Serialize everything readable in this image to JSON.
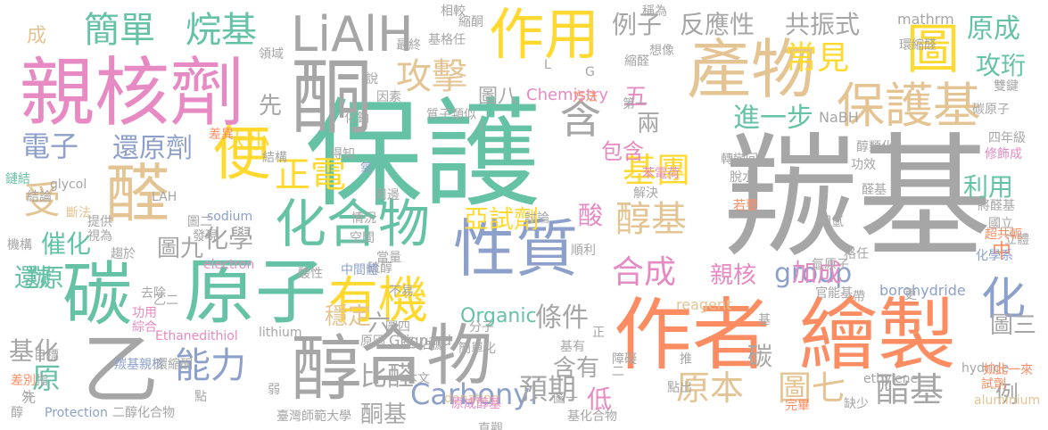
{
  "palette": {
    "gray": "#a6a6a6",
    "pink": "#e78ac3",
    "green": "#66c2a5",
    "orange": "#fc8d62",
    "blue": "#8da0cb",
    "lime": "#a6d854",
    "yellow": "#ffd92f",
    "tan": "#e5c494",
    "background": "#ffffff"
  },
  "words": [
    {
      "text": "羰基",
      "color": "gray"
    },
    {
      "text": "保護",
      "color": "green"
    },
    {
      "text": "作者",
      "color": "orange"
    },
    {
      "text": "繪製",
      "color": "orange"
    },
    {
      "text": "親核劑",
      "color": "pink"
    },
    {
      "text": "原子",
      "color": "green"
    },
    {
      "text": "產物",
      "color": "tan"
    },
    {
      "text": "合物",
      "color": "gray"
    },
    {
      "text": "酮",
      "color": "gray"
    },
    {
      "text": "醇",
      "color": "gray"
    },
    {
      "text": "醛",
      "color": "tan"
    },
    {
      "text": "乙",
      "color": "gray"
    },
    {
      "text": "碳",
      "color": "green"
    },
    {
      "text": "性質",
      "color": "blue"
    },
    {
      "text": "LiAlH",
      "color": "gray"
    },
    {
      "text": "作用",
      "color": "yellow"
    },
    {
      "text": "圖",
      "color": "yellow"
    },
    {
      "text": "便",
      "color": "yellow"
    },
    {
      "text": "化合物",
      "color": "green"
    },
    {
      "text": "保護基",
      "color": "tan"
    },
    {
      "text": "有機",
      "color": "yellow"
    },
    {
      "text": "能力",
      "color": "blue"
    },
    {
      "text": "受",
      "color": "tan"
    },
    {
      "text": "醇基",
      "color": "tan"
    },
    {
      "text": "化",
      "color": "blue"
    },
    {
      "text": "簡單",
      "color": "green"
    },
    {
      "text": "烷基",
      "color": "green"
    },
    {
      "text": "攻擊",
      "color": "tan"
    },
    {
      "text": "含",
      "color": "gray"
    },
    {
      "text": "常見",
      "color": "yellow"
    },
    {
      "text": "正電",
      "color": "yellow"
    },
    {
      "text": "基團",
      "color": "yellow"
    },
    {
      "text": "合成",
      "color": "pink"
    },
    {
      "text": "group",
      "color": "blue"
    },
    {
      "text": "Carbonyl",
      "color": "blue"
    },
    {
      "text": "預期",
      "color": "gray"
    },
    {
      "text": "原本",
      "color": "tan"
    },
    {
      "text": "圖七",
      "color": "tan"
    },
    {
      "text": "酯基",
      "color": "gray"
    },
    {
      "text": "電子",
      "color": "blue"
    },
    {
      "text": "還原劑",
      "color": "blue"
    },
    {
      "text": "包含",
      "color": "pink"
    },
    {
      "text": "進一步",
      "color": "green"
    },
    {
      "text": "亞試劑",
      "color": "yellow"
    },
    {
      "text": "酸",
      "color": "pink"
    },
    {
      "text": "加成",
      "color": "pink"
    },
    {
      "text": "親核",
      "color": "pink"
    },
    {
      "text": "條件",
      "color": "gray"
    },
    {
      "text": "比醛",
      "color": "gray"
    },
    {
      "text": "穩定",
      "color": "tan"
    },
    {
      "text": "含有",
      "color": "gray"
    },
    {
      "text": "低",
      "color": "pink"
    },
    {
      "text": "酮基",
      "color": "gray"
    },
    {
      "text": "例子",
      "color": "gray"
    },
    {
      "text": "反應性",
      "color": "gray"
    },
    {
      "text": "共振式",
      "color": "gray"
    },
    {
      "text": "原成",
      "color": "green"
    },
    {
      "text": "攻珩",
      "color": "green"
    },
    {
      "text": "利用",
      "color": "green"
    },
    {
      "text": "中",
      "color": "orange"
    },
    {
      "text": "圖三",
      "color": "gray"
    },
    {
      "text": "例",
      "color": "gray"
    },
    {
      "text": "碳",
      "color": "gray"
    },
    {
      "text": "催化",
      "color": "green"
    },
    {
      "text": "羰",
      "color": "green"
    },
    {
      "text": "還原",
      "color": "green"
    },
    {
      "text": "基化",
      "color": "gray"
    },
    {
      "text": "原",
      "color": "green"
    },
    {
      "text": "化學",
      "color": "gray"
    },
    {
      "text": "圖九",
      "color": "gray"
    },
    {
      "text": "大小",
      "color": "yellow"
    },
    {
      "text": "圖八",
      "color": "gray"
    },
    {
      "text": "五",
      "color": "pink"
    },
    {
      "text": "兩",
      "color": "gray"
    },
    {
      "text": "先",
      "color": "gray"
    },
    {
      "text": "六",
      "color": "gray"
    },
    {
      "text": "成",
      "color": "tan"
    },
    {
      "text": "Organic",
      "color": "green"
    },
    {
      "text": "Chemistry",
      "color": "pink"
    },
    {
      "text": "mathrm",
      "color": "gray"
    },
    {
      "text": "NaBH",
      "color": "gray"
    },
    {
      "text": "borohydride",
      "color": "blue"
    },
    {
      "text": "reagent",
      "color": "tan"
    },
    {
      "text": "Grignard",
      "color": "gray"
    },
    {
      "text": "lithium",
      "color": "gray"
    },
    {
      "text": "sodium",
      "color": "blue"
    },
    {
      "text": "electron",
      "color": "pink"
    },
    {
      "text": "Ethanedithiol",
      "color": "pink"
    },
    {
      "text": "Protection",
      "color": "blue"
    },
    {
      "text": "hydride",
      "color": "gray"
    },
    {
      "text": "aluminium",
      "color": "tan"
    },
    {
      "text": "ethylene",
      "color": "gray"
    },
    {
      "text": "donating",
      "color": "tan"
    },
    {
      "text": "glycol",
      "color": "gray"
    },
    {
      "text": "LAH",
      "color": "gray"
    },
    {
      "text": "二醇化合物",
      "color": "gray"
    },
    {
      "text": "臺灣師範大學",
      "color": "gray"
    },
    {
      "text": "羰基親核",
      "color": "blue"
    },
    {
      "text": "環縮酮",
      "color": "gray"
    },
    {
      "text": "基化合物",
      "color": "gray"
    },
    {
      "text": "原成醇基",
      "color": "pink"
    },
    {
      "text": "雙鍵",
      "color": "gray"
    },
    {
      "text": "四年級",
      "color": "gray"
    },
    {
      "text": "碳原子",
      "color": "gray"
    },
    {
      "text": "修飾成",
      "color": "pink"
    },
    {
      "text": "醇類化",
      "color": "gray"
    },
    {
      "text": "功效",
      "color": "gray"
    },
    {
      "text": "醛基",
      "color": "gray"
    },
    {
      "text": "將醛基",
      "color": "gray"
    },
    {
      "text": "國立",
      "color": "gray"
    },
    {
      "text": "立體",
      "color": "gray"
    },
    {
      "text": "超共軛",
      "color": "orange"
    },
    {
      "text": "化學系",
      "color": "blue"
    },
    {
      "text": "轉變回",
      "color": "gray"
    },
    {
      "text": "苯電荷",
      "color": "pink"
    },
    {
      "text": "解決",
      "color": "gray"
    },
    {
      "text": "脫水",
      "color": "gray"
    },
    {
      "text": "若要",
      "color": "orange"
    },
    {
      "text": "硼氫",
      "color": "gray"
    },
    {
      "text": "氫原子",
      "color": "gray"
    },
    {
      "text": "官能基",
      "color": "gray"
    },
    {
      "text": "環縮醛",
      "color": "gray"
    },
    {
      "text": "縮醛",
      "color": "gray"
    },
    {
      "text": "縮酮",
      "color": "gray"
    },
    {
      "text": "基格任",
      "color": "gray"
    },
    {
      "text": "想像",
      "color": "gray"
    },
    {
      "text": "稱為",
      "color": "gray"
    },
    {
      "text": "相較",
      "color": "gray"
    },
    {
      "text": "最終",
      "color": "gray"
    },
    {
      "text": "領域",
      "color": "gray"
    },
    {
      "text": "化鈉",
      "color": "gray"
    },
    {
      "text": "因素",
      "color": "gray"
    },
    {
      "text": "說",
      "color": "gray"
    },
    {
      "text": "質子",
      "color": "gray"
    },
    {
      "text": "類似",
      "color": "gray"
    },
    {
      "text": "第一",
      "color": "gray"
    },
    {
      "text": "方法",
      "color": "orange"
    },
    {
      "text": "差異",
      "color": "orange"
    },
    {
      "text": "得知",
      "color": "gray"
    },
    {
      "text": "結構",
      "color": "gray"
    },
    {
      "text": "結論",
      "color": "gray"
    },
    {
      "text": "鏈結",
      "color": "green"
    },
    {
      "text": "斷法",
      "color": "tan"
    },
    {
      "text": "氧",
      "color": "blue"
    },
    {
      "text": "周邊",
      "color": "gray"
    },
    {
      "text": "情況",
      "color": "gray"
    },
    {
      "text": "空間",
      "color": "gray"
    },
    {
      "text": "討論",
      "color": "gray"
    },
    {
      "text": "順利",
      "color": "gray"
    },
    {
      "text": "提供",
      "color": "gray"
    },
    {
      "text": "視為",
      "color": "gray"
    },
    {
      "text": "圖二",
      "color": "gray"
    },
    {
      "text": "發現",
      "color": "gray"
    },
    {
      "text": "機構",
      "color": "gray"
    },
    {
      "text": "趨於",
      "color": "gray"
    },
    {
      "text": "去除",
      "color": "gray"
    },
    {
      "text": "乙二",
      "color": "gray"
    },
    {
      "text": "功用",
      "color": "pink"
    },
    {
      "text": "綜合",
      "color": "pink"
    },
    {
      "text": "當量",
      "color": "gray"
    },
    {
      "text": "酸性",
      "color": "gray"
    },
    {
      "text": "硫醇",
      "color": "gray"
    },
    {
      "text": "不易",
      "color": "gray"
    },
    {
      "text": "中間體",
      "color": "blue"
    },
    {
      "text": "圖四",
      "color": "gray"
    },
    {
      "text": "佔據",
      "color": "gray"
    },
    {
      "text": "分子",
      "color": "gray"
    },
    {
      "text": "簡單化",
      "color": "gray"
    },
    {
      "text": "鋰",
      "color": "gray"
    },
    {
      "text": "原因",
      "color": "gray"
    },
    {
      "text": "本文",
      "color": "gray"
    },
    {
      "text": "直觀",
      "color": "gray"
    },
    {
      "text": "圖一",
      "color": "gray"
    },
    {
      "text": "基有",
      "color": "gray"
    },
    {
      "text": "障礙",
      "color": "gray"
    },
    {
      "text": "點出",
      "color": "gray"
    },
    {
      "text": "完畢",
      "color": "orange"
    },
    {
      "text": "缺少",
      "color": "gray"
    },
    {
      "text": "如此一來",
      "color": "orange"
    },
    {
      "text": "試劑",
      "color": "orange"
    },
    {
      "text": "格任",
      "color": "gray"
    },
    {
      "text": "目標",
      "color": "gray"
    },
    {
      "text": "指",
      "color": "gray"
    },
    {
      "text": "差別",
      "color": "orange"
    },
    {
      "text": "外",
      "color": "gray"
    },
    {
      "text": "元",
      "color": "gray"
    },
    {
      "text": "醇",
      "color": "gray"
    },
    {
      "text": "弱",
      "color": "gray"
    },
    {
      "text": "點",
      "color": "gray"
    },
    {
      "text": "推",
      "color": "gray"
    },
    {
      "text": "更",
      "color": "gray"
    },
    {
      "text": "基",
      "color": "gray"
    },
    {
      "text": "帶",
      "color": "gray"
    },
    {
      "text": "正",
      "color": "gray"
    },
    {
      "text": "二",
      "color": "gray"
    },
    {
      "text": "L",
      "color": "gray"
    },
    {
      "text": "G",
      "color": "gray"
    },
    {
      "text": "I",
      "color": "gray"
    }
  ]
}
